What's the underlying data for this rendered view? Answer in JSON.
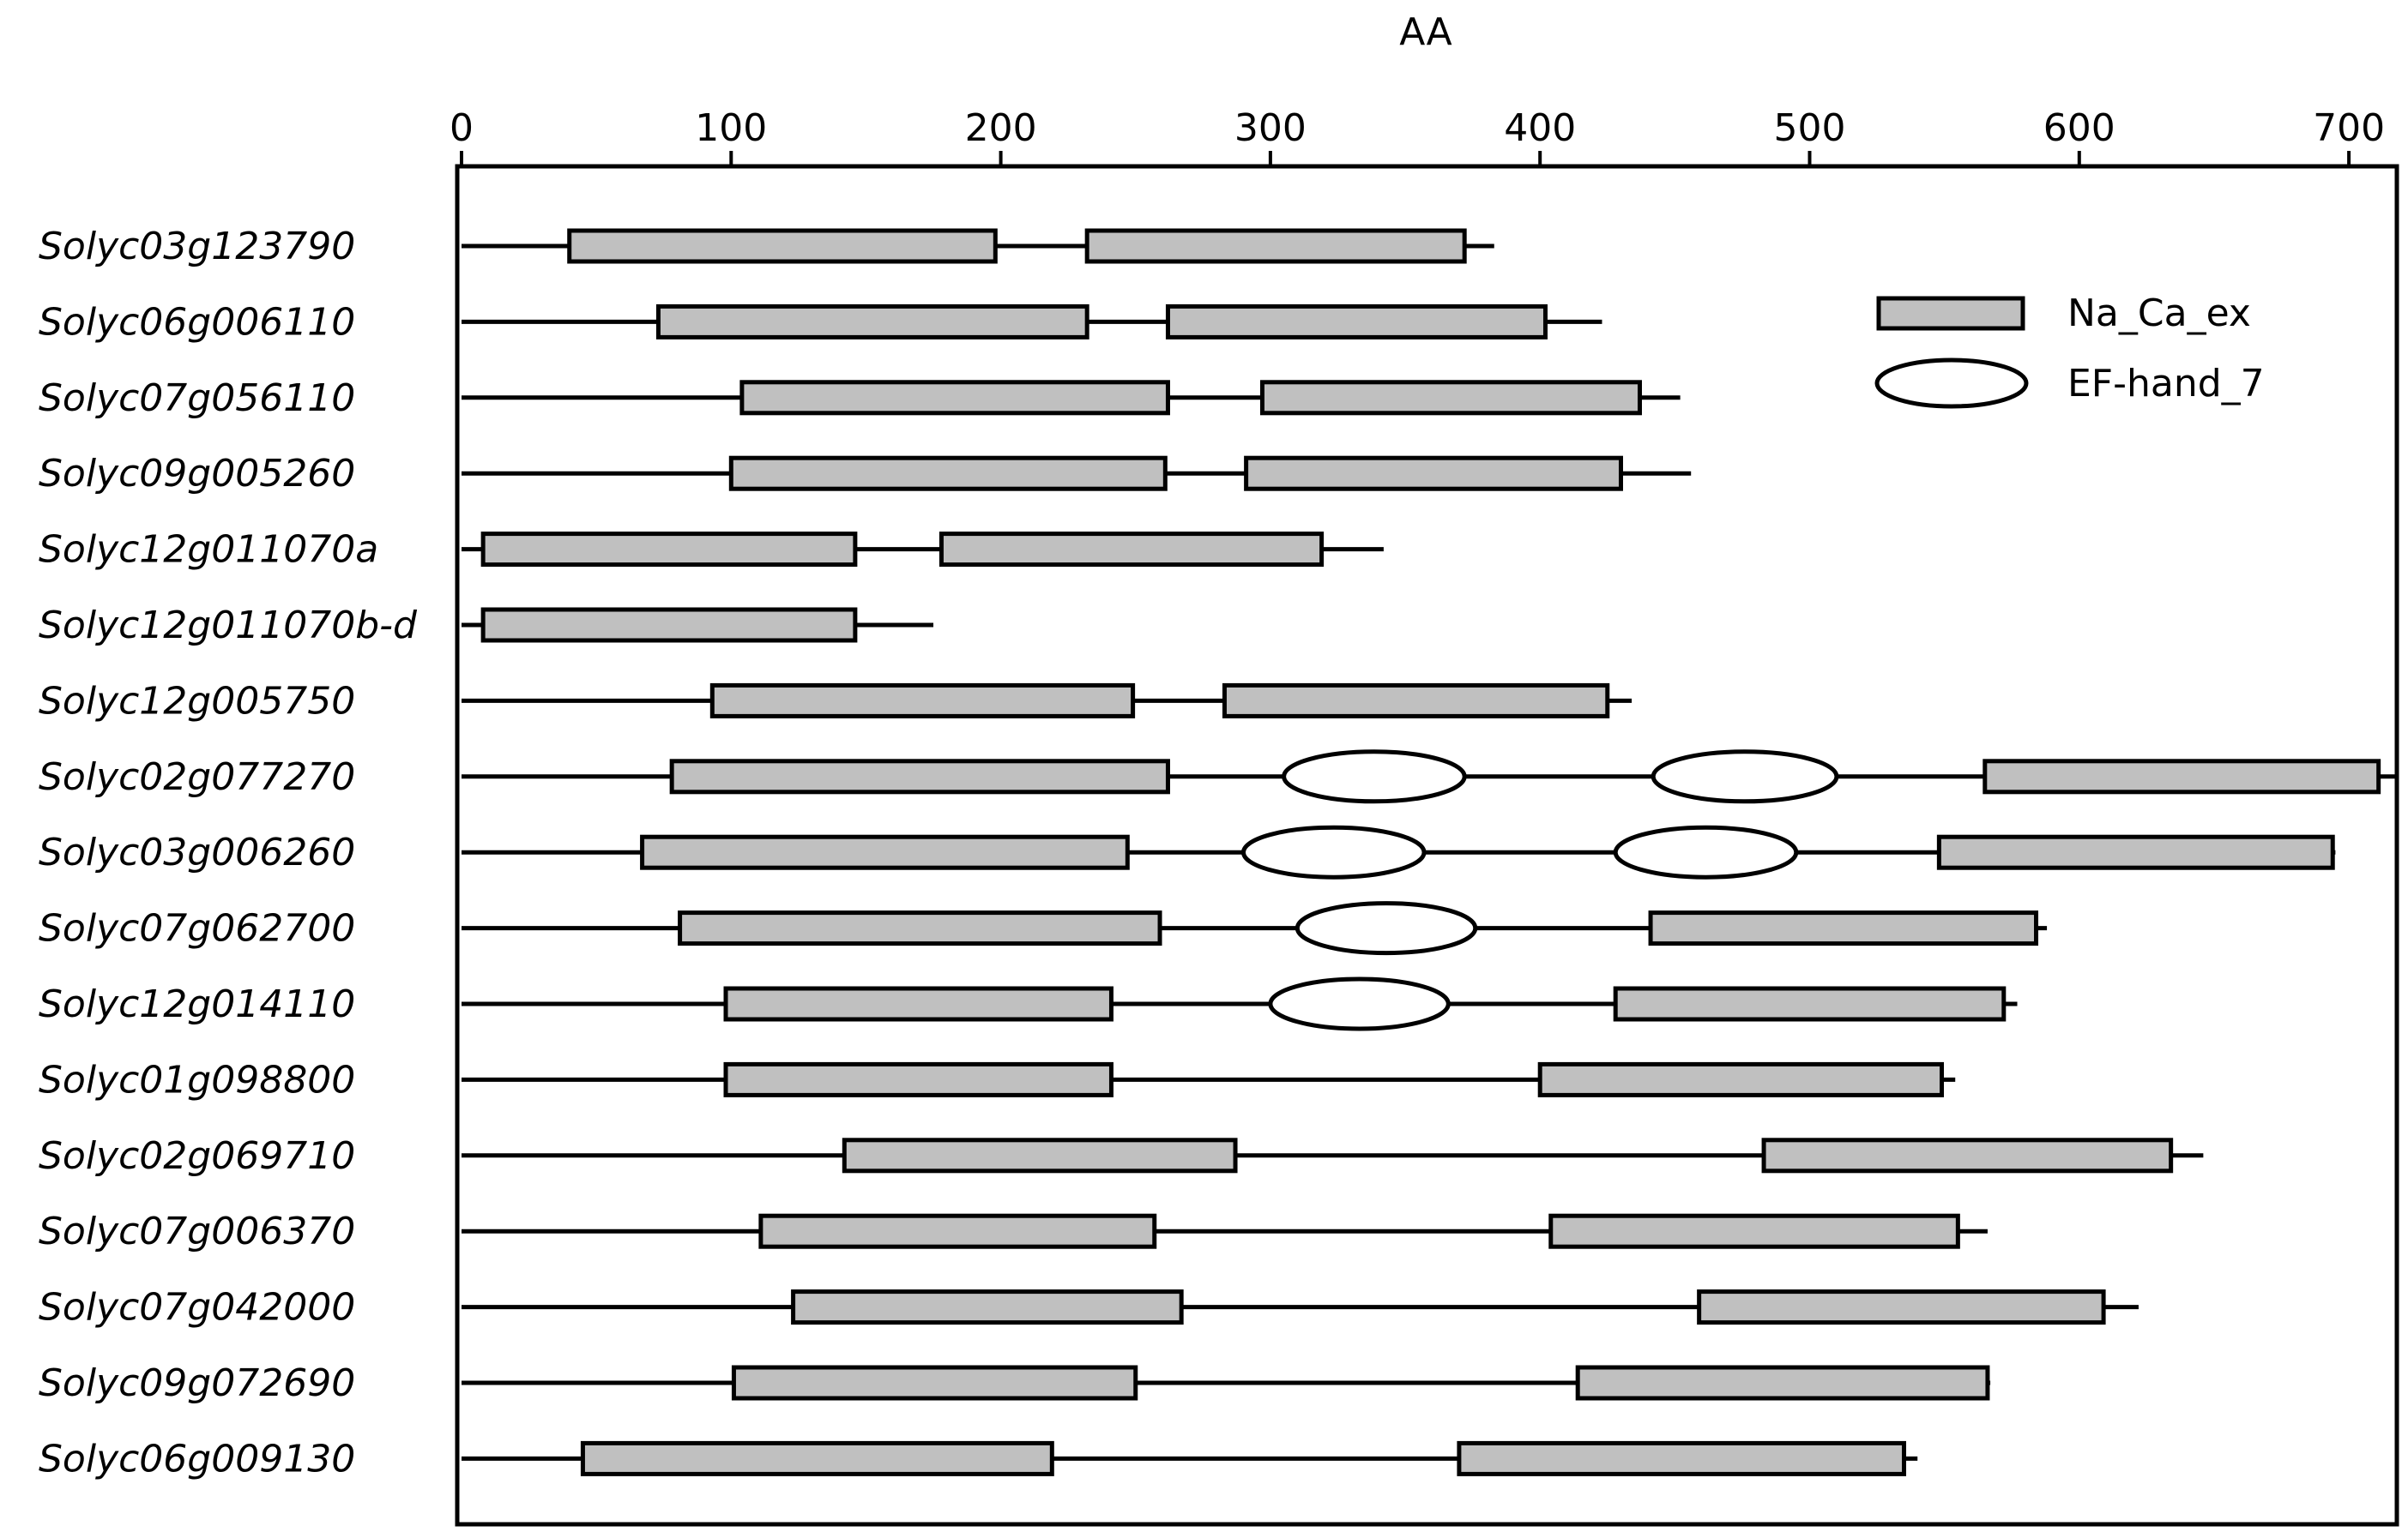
{
  "chart_data": {
    "type": "protein-domain-diagram",
    "xlabel": "AA",
    "xlim": [
      0,
      720
    ],
    "xticks": [
      0,
      100,
      200,
      300,
      400,
      500,
      600,
      700
    ],
    "xtick_labels": [
      "0",
      "100",
      "200",
      "300",
      "400",
      "500",
      "600",
      "700"
    ],
    "axis_position": "top",
    "legend": {
      "position": "top-right",
      "entries": [
        {
          "label": "Na_Ca_ex",
          "shape": "rect",
          "fill": "#c0c0c0"
        },
        {
          "label": "EF-hand_7",
          "shape": "ellipse",
          "fill": "#ffffff"
        }
      ]
    },
    "colors": {
      "na_ca_ex_fill": "#c0c0c0",
      "ef_hand_fill": "#ffffff",
      "stroke": "#000000"
    },
    "proteins": [
      {
        "name": "Solyc03g123790",
        "length": 383,
        "domains": [
          {
            "type": "Na_Ca_ex",
            "start": 40,
            "end": 198
          },
          {
            "type": "Na_Ca_ex",
            "start": 232,
            "end": 372
          }
        ]
      },
      {
        "name": "Solyc06g006110",
        "length": 423,
        "domains": [
          {
            "type": "Na_Ca_ex",
            "start": 73,
            "end": 232
          },
          {
            "type": "Na_Ca_ex",
            "start": 262,
            "end": 402
          }
        ]
      },
      {
        "name": "Solyc07g056110",
        "length": 452,
        "domains": [
          {
            "type": "Na_Ca_ex",
            "start": 104,
            "end": 262
          },
          {
            "type": "Na_Ca_ex",
            "start": 297,
            "end": 437
          }
        ]
      },
      {
        "name": "Solyc09g005260",
        "length": 456,
        "domains": [
          {
            "type": "Na_Ca_ex",
            "start": 100,
            "end": 261
          },
          {
            "type": "Na_Ca_ex",
            "start": 291,
            "end": 430
          }
        ]
      },
      {
        "name": "Solyc12g011070a",
        "length": 342,
        "domains": [
          {
            "type": "Na_Ca_ex",
            "start": 8,
            "end": 146
          },
          {
            "type": "Na_Ca_ex",
            "start": 178,
            "end": 319
          }
        ]
      },
      {
        "name": "Solyc12g011070b-d",
        "length": 175,
        "domains": [
          {
            "type": "Na_Ca_ex",
            "start": 8,
            "end": 146
          }
        ]
      },
      {
        "name": "Solyc12g005750",
        "length": 434,
        "domains": [
          {
            "type": "Na_Ca_ex",
            "start": 93,
            "end": 249
          },
          {
            "type": "Na_Ca_ex",
            "start": 283,
            "end": 425
          }
        ]
      },
      {
        "name": "Solyc02g077270",
        "length": 717,
        "domains": [
          {
            "type": "Na_Ca_ex",
            "start": 78,
            "end": 262
          },
          {
            "type": "EF-hand_7",
            "start": 305,
            "end": 372
          },
          {
            "type": "EF-hand_7",
            "start": 442,
            "end": 510
          },
          {
            "type": "Na_Ca_ex",
            "start": 565,
            "end": 711
          }
        ]
      },
      {
        "name": "Solyc03g006260",
        "length": 695,
        "domains": [
          {
            "type": "Na_Ca_ex",
            "start": 67,
            "end": 247
          },
          {
            "type": "EF-hand_7",
            "start": 290,
            "end": 357
          },
          {
            "type": "EF-hand_7",
            "start": 428,
            "end": 495
          },
          {
            "type": "Na_Ca_ex",
            "start": 548,
            "end": 694
          }
        ]
      },
      {
        "name": "Solyc07g062700",
        "length": 588,
        "domains": [
          {
            "type": "Na_Ca_ex",
            "start": 81,
            "end": 259
          },
          {
            "type": "EF-hand_7",
            "start": 310,
            "end": 376
          },
          {
            "type": "Na_Ca_ex",
            "start": 441,
            "end": 584
          }
        ]
      },
      {
        "name": "Solyc12g014110",
        "length": 577,
        "domains": [
          {
            "type": "Na_Ca_ex",
            "start": 98,
            "end": 241
          },
          {
            "type": "EF-hand_7",
            "start": 300,
            "end": 366
          },
          {
            "type": "Na_Ca_ex",
            "start": 428,
            "end": 572
          }
        ]
      },
      {
        "name": "Solyc01g098800",
        "length": 554,
        "domains": [
          {
            "type": "Na_Ca_ex",
            "start": 98,
            "end": 241
          },
          {
            "type": "Na_Ca_ex",
            "start": 400,
            "end": 549
          }
        ]
      },
      {
        "name": "Solyc02g069710",
        "length": 646,
        "domains": [
          {
            "type": "Na_Ca_ex",
            "start": 142,
            "end": 287
          },
          {
            "type": "Na_Ca_ex",
            "start": 483,
            "end": 634
          }
        ]
      },
      {
        "name": "Solyc07g006370",
        "length": 566,
        "domains": [
          {
            "type": "Na_Ca_ex",
            "start": 111,
            "end": 257
          },
          {
            "type": "Na_Ca_ex",
            "start": 404,
            "end": 555
          }
        ]
      },
      {
        "name": "Solyc07g042000",
        "length": 622,
        "domains": [
          {
            "type": "Na_Ca_ex",
            "start": 123,
            "end": 267
          },
          {
            "type": "Na_Ca_ex",
            "start": 459,
            "end": 609
          }
        ]
      },
      {
        "name": "Solyc09g072690",
        "length": 567,
        "domains": [
          {
            "type": "Na_Ca_ex",
            "start": 101,
            "end": 250
          },
          {
            "type": "Na_Ca_ex",
            "start": 414,
            "end": 566
          }
        ]
      },
      {
        "name": "Solyc06g009130",
        "length": 540,
        "domains": [
          {
            "type": "Na_Ca_ex",
            "start": 45,
            "end": 219
          },
          {
            "type": "Na_Ca_ex",
            "start": 370,
            "end": 535
          }
        ]
      }
    ]
  }
}
